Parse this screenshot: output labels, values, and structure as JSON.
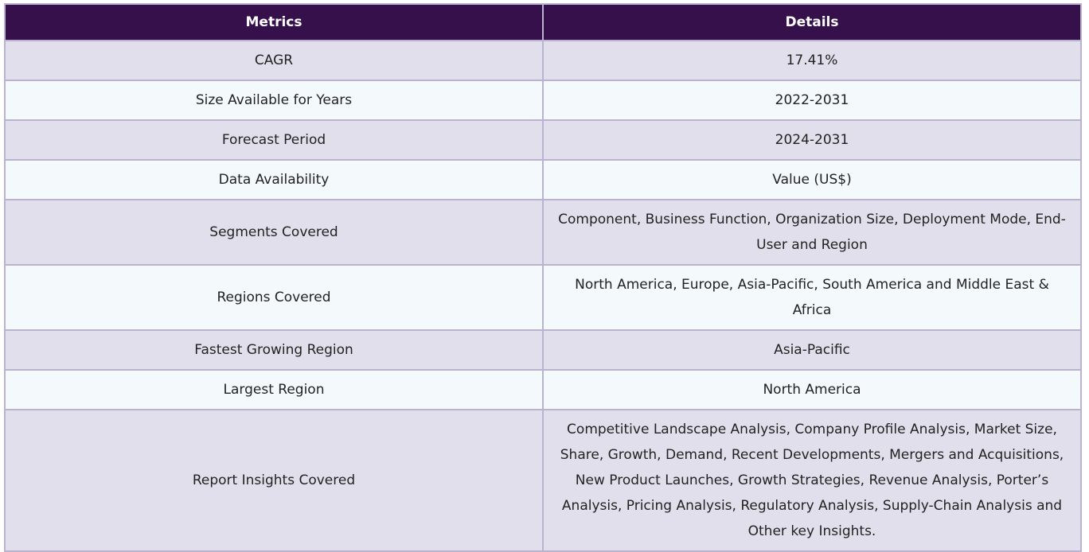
{
  "table": {
    "headers": [
      "Metrics",
      "Details"
    ],
    "rows": [
      {
        "metric": "CAGR",
        "detail": "17.41%"
      },
      {
        "metric": "Size Available for Years",
        "detail": "2022-2031"
      },
      {
        "metric": "Forecast Period",
        "detail": "2024-2031"
      },
      {
        "metric": "Data Availability",
        "detail": "Value (US$)"
      },
      {
        "metric": "Segments Covered",
        "detail": "Component, Business Function, Organization Size, Deployment Mode, End-User and Region"
      },
      {
        "metric": "Regions Covered",
        "detail": "North America, Europe, Asia-Pacific, South America and Middle East & Africa"
      },
      {
        "metric": "Fastest Growing Region",
        "detail": "Asia-Pacific"
      },
      {
        "metric": "Largest Region",
        "detail": "North America"
      },
      {
        "metric": "Report Insights Covered",
        "detail": "Competitive Landscape Analysis, Company Profile Analysis, Market Size, Share, Growth, Demand, Recent Developments, Mergers and Acquisitions, New Product Launches, Growth Strategies, Revenue Analysis, Porter’s Analysis, Pricing Analysis, Regulatory Analysis, Supply-Chain Analysis and Other key Insights."
      }
    ]
  },
  "colors": {
    "header_bg": "#36104a",
    "row_odd_bg": "#e2dfec",
    "row_even_bg": "#f4f9fc",
    "border": "#b9b3d1"
  }
}
